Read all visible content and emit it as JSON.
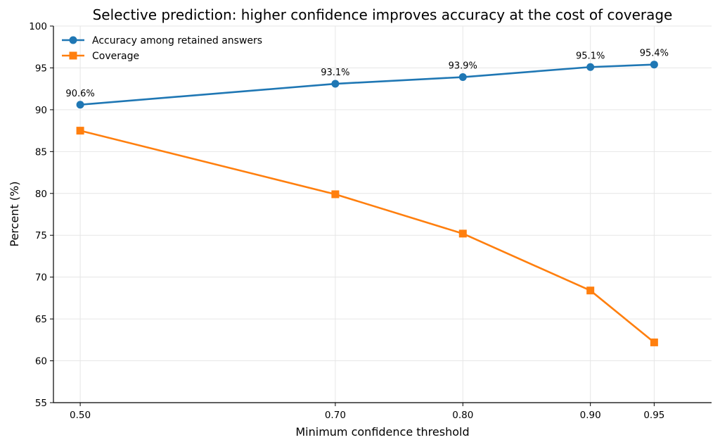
{
  "chart_data": {
    "type": "line",
    "title": "Selective prediction: higher confidence improves accuracy at the cost of coverage",
    "xlabel": "Minimum confidence threshold",
    "ylabel": "Percent (%)",
    "x": [
      0.5,
      0.7,
      0.8,
      0.9,
      0.95
    ],
    "x_tick_labels": [
      "0.50",
      "0.70",
      "0.80",
      "0.90",
      "0.95"
    ],
    "xlim": [
      0.479,
      0.995
    ],
    "ylim": [
      55,
      100
    ],
    "y_ticks": [
      55,
      60,
      65,
      70,
      75,
      80,
      85,
      90,
      95,
      100
    ],
    "grid": true,
    "legend_position": "top-left",
    "series": [
      {
        "name": "Accuracy among retained answers",
        "values": [
          90.6,
          93.1,
          93.9,
          95.1,
          95.4
        ],
        "data_labels": [
          "90.6%",
          "93.1%",
          "93.9%",
          "95.1%",
          "95.4%"
        ],
        "color": "#1f77b4",
        "marker": "circle"
      },
      {
        "name": "Coverage",
        "values": [
          87.5,
          79.9,
          75.2,
          68.4,
          62.2
        ],
        "color": "#ff7f0e",
        "marker": "square"
      }
    ]
  }
}
